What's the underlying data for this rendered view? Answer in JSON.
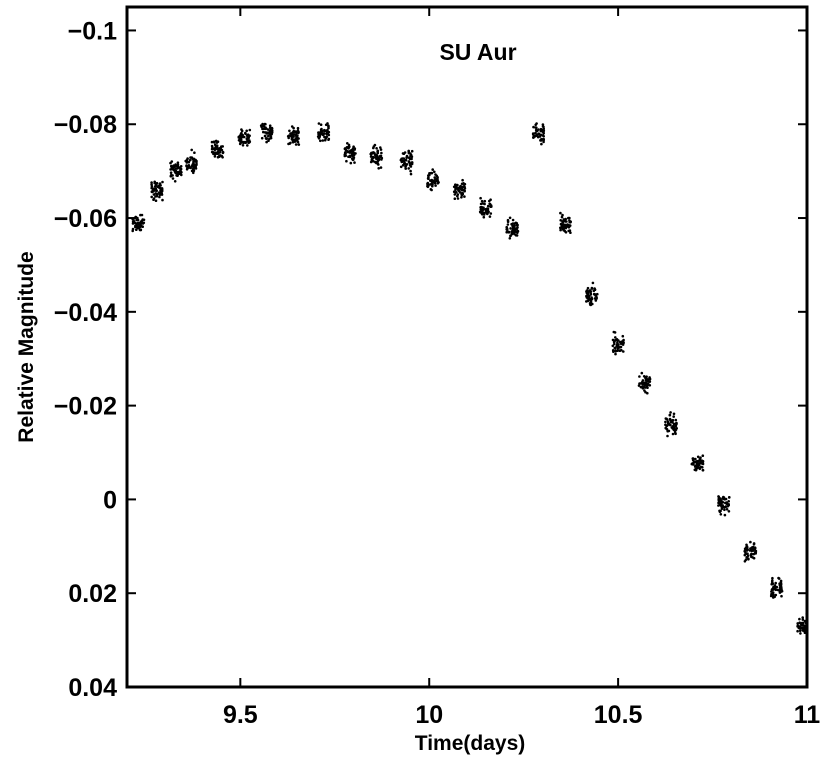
{
  "chart_data": {
    "type": "scatter",
    "title": "SU Aur",
    "xlabel": "Time(days)",
    "ylabel": "Relative Magnitude",
    "xlim": [
      9.2,
      11.0
    ],
    "ylim": [
      0.04,
      -0.105
    ],
    "y_axis_inverted": true,
    "x_ticks": [
      9.5,
      10,
      10.5,
      11
    ],
    "x_tick_labels": [
      "9.5",
      "10",
      "10.5",
      "11"
    ],
    "y_ticks": [
      -0.1,
      -0.08,
      -0.06,
      -0.04,
      -0.02,
      0,
      0.02,
      0.04
    ],
    "y_tick_labels": [
      "−0.1",
      "−0.08",
      "−0.06",
      "−0.04",
      "−0.02",
      "0",
      "0.02",
      "0.04"
    ],
    "grid": false,
    "legend": "none",
    "marker_color": "#000000",
    "series": [
      {
        "clusters": [
          {
            "x": 9.23,
            "y": -0.059
          },
          {
            "x": 9.28,
            "y": -0.066
          },
          {
            "x": 9.33,
            "y": -0.07
          },
          {
            "x": 9.37,
            "y": -0.0715
          },
          {
            "x": 9.44,
            "y": -0.0745
          },
          {
            "x": 9.51,
            "y": -0.077
          },
          {
            "x": 9.57,
            "y": -0.0785
          },
          {
            "x": 9.64,
            "y": -0.0775
          },
          {
            "x": 9.72,
            "y": -0.078
          },
          {
            "x": 9.79,
            "y": -0.074
          },
          {
            "x": 9.86,
            "y": -0.073
          },
          {
            "x": 9.94,
            "y": -0.072
          },
          {
            "x": 10.01,
            "y": -0.068
          },
          {
            "x": 10.08,
            "y": -0.066
          },
          {
            "x": 10.15,
            "y": -0.062
          },
          {
            "x": 10.22,
            "y": -0.0575
          },
          {
            "x": 10.29,
            "y": -0.078
          },
          {
            "x": 10.36,
            "y": -0.0585
          },
          {
            "x": 10.43,
            "y": -0.043
          },
          {
            "x": 10.5,
            "y": -0.033
          },
          {
            "x": 10.57,
            "y": -0.025
          },
          {
            "x": 10.64,
            "y": -0.016
          },
          {
            "x": 10.71,
            "y": -0.0075
          },
          {
            "x": 10.78,
            "y": 0.001
          },
          {
            "x": 10.85,
            "y": 0.011
          },
          {
            "x": 10.92,
            "y": 0.019
          },
          {
            "x": 10.99,
            "y": 0.027
          }
        ]
      }
    ]
  }
}
